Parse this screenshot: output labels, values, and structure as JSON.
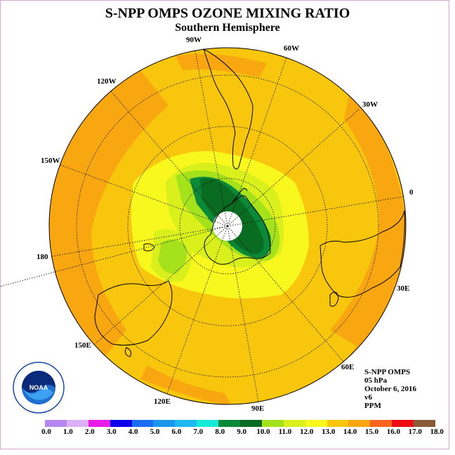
{
  "title": "S-NPP OMPS OZONE MIXING RATIO",
  "subtitle": "Southern Hemisphere",
  "longitude_labels": {
    "lon_90w": "90W",
    "lon_60w": "60W",
    "lon_30w": "30W",
    "lon_0": "0",
    "lon_30e": "30E",
    "lon_60e": "60E",
    "lon_90e": "90E",
    "lon_120e": "120E",
    "lon_150e": "150E",
    "lon_180": "180",
    "lon_150w": "150W",
    "lon_120w": "120W"
  },
  "info": {
    "instrument": "S-NPP OMPS",
    "level": "05 hPa",
    "date": "October 6, 2016",
    "version": "v6",
    "units": "PPM"
  },
  "logo_text": "NOAA",
  "colorbar": {
    "colors": [
      "#b787f0",
      "#dcb0f4",
      "#e81ce8",
      "#0a00ea",
      "#1a6cf0",
      "#1c96ea",
      "#1db7f1",
      "#15ead8",
      "#0a8a38",
      "#0a6c21",
      "#a6e21b",
      "#d9f01c",
      "#f8f71e",
      "#f8c60c",
      "#f8a710",
      "#f6651b",
      "#eb0d13",
      "#8a5a3b"
    ],
    "tick_labels": [
      "0.0",
      "1.0",
      "2.0",
      "3.0",
      "4.0",
      "5.0",
      "6.0",
      "7.0",
      "8.0",
      "9.0",
      "10.0",
      "11.0",
      "12.0",
      "13.0",
      "14.0",
      "15.0",
      "16.0",
      "17.0",
      "18.0"
    ]
  }
}
